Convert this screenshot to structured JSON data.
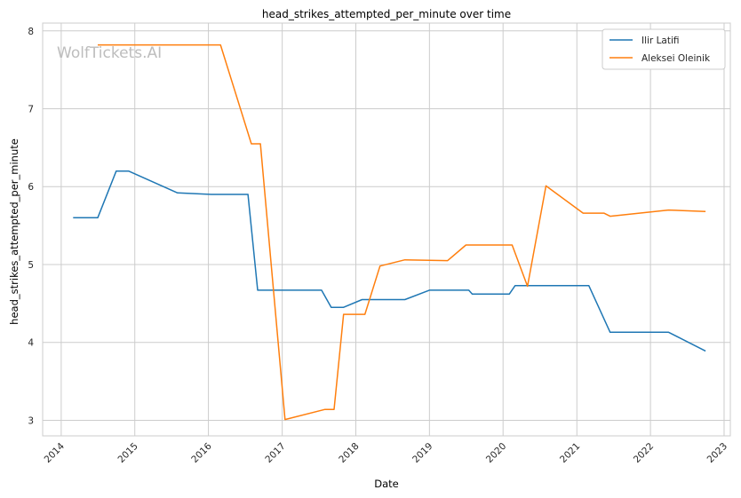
{
  "chart_data": {
    "type": "line",
    "title": "head_strikes_attempted_per_minute over time",
    "xlabel": "Date",
    "ylabel": "head_strikes_attempted_per_minute",
    "watermark": "WolfTickets.AI",
    "grid": true,
    "legend_position": "top-right",
    "x_ticks": [
      "2014",
      "2015",
      "2016",
      "2017",
      "2018",
      "2019",
      "2020",
      "2021",
      "2022",
      "2023"
    ],
    "y_ticks": [
      3,
      4,
      5,
      6,
      7,
      8
    ],
    "xlim": [
      "2013-10-01",
      "2023-02-01"
    ],
    "ylim": [
      2.8,
      8.1
    ],
    "series": [
      {
        "name": "Ilir Latifi",
        "color": "#1f77b4",
        "points": [
          [
            "2014-03-01",
            5.6
          ],
          [
            "2014-07-01",
            5.6
          ],
          [
            "2014-10-01",
            6.2
          ],
          [
            "2014-12-01",
            6.2
          ],
          [
            "2015-08-01",
            5.92
          ],
          [
            "2016-01-15",
            5.9
          ],
          [
            "2016-07-15",
            5.9
          ],
          [
            "2016-09-01",
            4.67
          ],
          [
            "2017-07-15",
            4.67
          ],
          [
            "2017-09-01",
            4.45
          ],
          [
            "2017-11-01",
            4.45
          ],
          [
            "2018-02-01",
            4.55
          ],
          [
            "2018-09-01",
            4.55
          ],
          [
            "2019-01-01",
            4.67
          ],
          [
            "2019-07-15",
            4.67
          ],
          [
            "2019-08-01",
            4.62
          ],
          [
            "2020-02-01",
            4.62
          ],
          [
            "2020-03-01",
            4.73
          ],
          [
            "2021-03-01",
            4.73
          ],
          [
            "2021-06-15",
            4.13
          ],
          [
            "2022-04-01",
            4.13
          ],
          [
            "2022-10-01",
            3.89
          ]
        ]
      },
      {
        "name": "Aleksei Oleinik",
        "color": "#ff7f0e",
        "points": [
          [
            "2014-07-01",
            7.82
          ],
          [
            "2016-03-01",
            7.82
          ],
          [
            "2016-08-01",
            6.55
          ],
          [
            "2016-09-15",
            6.55
          ],
          [
            "2017-01-15",
            3.01
          ],
          [
            "2017-08-01",
            3.14
          ],
          [
            "2017-09-15",
            3.14
          ],
          [
            "2017-11-01",
            4.36
          ],
          [
            "2018-02-15",
            4.36
          ],
          [
            "2018-05-01",
            4.98
          ],
          [
            "2018-09-01",
            5.06
          ],
          [
            "2019-04-01",
            5.05
          ],
          [
            "2019-07-01",
            5.25
          ],
          [
            "2020-02-15",
            5.25
          ],
          [
            "2020-05-01",
            4.72
          ],
          [
            "2020-08-01",
            6.01
          ],
          [
            "2021-02-01",
            5.66
          ],
          [
            "2021-05-15",
            5.66
          ],
          [
            "2021-06-15",
            5.62
          ],
          [
            "2022-04-01",
            5.7
          ],
          [
            "2022-10-01",
            5.68
          ]
        ]
      }
    ]
  }
}
